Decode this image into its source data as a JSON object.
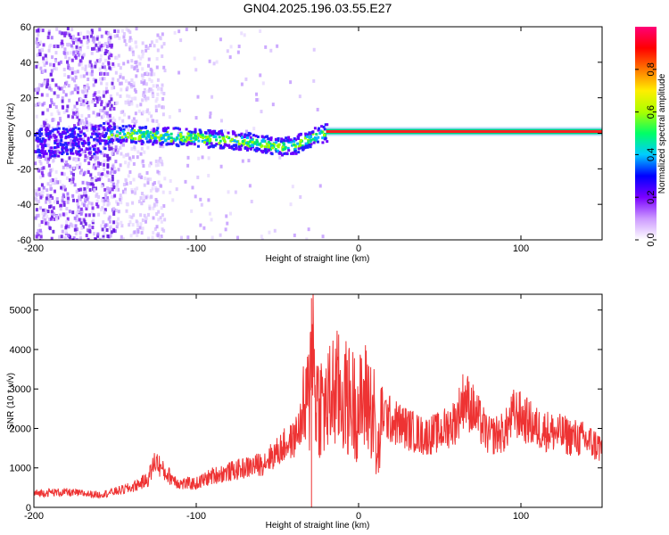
{
  "title": "GN04.2025.196.03.55.E27",
  "chart_data": [
    {
      "type": "heatmap",
      "xlabel": "Height of straight line (km)",
      "ylabel": "Frequency (Hz)",
      "xlim": [
        -200,
        150
      ],
      "ylim": [
        -60,
        60
      ],
      "xticks": [
        -200,
        -100,
        0,
        100
      ],
      "yticks": [
        -60,
        -40,
        -20,
        0,
        20,
        40,
        60
      ],
      "colorbar": {
        "label": "Normalized spectral amplitude",
        "range": [
          0,
          1
        ],
        "ticks": [
          "0.0",
          "0.2",
          "0.4",
          "0.6",
          "0.8"
        ],
        "colors": [
          "#ffffff",
          "#cc99ff",
          "#7a00ff",
          "#0000ff",
          "#00ccff",
          "#00ff66",
          "#aaff00",
          "#ffee00",
          "#ff7700",
          "#ff0000",
          "#ff0077"
        ]
      },
      "ridge": {
        "x": [
          -200,
          -180,
          -160,
          -155,
          -140,
          -120,
          -100,
          -80,
          -60,
          -50,
          -40,
          -30,
          -20,
          0,
          50,
          100,
          150
        ],
        "y": [
          -5,
          -4,
          -3,
          0,
          0,
          -1,
          -2,
          -3,
          -5,
          -7,
          -6,
          -2,
          1,
          1,
          1,
          1,
          1
        ]
      },
      "grid": false
    },
    {
      "type": "line",
      "xlabel": "Height of straight line (km)",
      "ylabel": "SNR (10 * v/v)",
      "xlim": [
        -200,
        150
      ],
      "ylim": [
        0,
        5400
      ],
      "xticks": [
        -200,
        -100,
        0,
        100
      ],
      "yticks": [
        0,
        1000,
        2000,
        3000,
        4000,
        5000
      ],
      "series": [
        {
          "color": "#ee3333",
          "x": [
            -200,
            -190,
            -180,
            -170,
            -160,
            -150,
            -140,
            -130,
            -125,
            -120,
            -110,
            -100,
            -90,
            -80,
            -70,
            -60,
            -50,
            -45,
            -40,
            -35,
            -30,
            -29,
            -27,
            -25,
            -20,
            -15,
            -10,
            -5,
            0,
            5,
            10,
            11,
            15,
            20,
            30,
            40,
            50,
            60,
            65,
            70,
            80,
            90,
            96,
            100,
            110,
            120,
            130,
            140,
            150
          ],
          "y": [
            350,
            380,
            380,
            350,
            320,
            400,
            500,
            700,
            1200,
            900,
            600,
            600,
            800,
            900,
            1000,
            1100,
            1400,
            1600,
            1700,
            2200,
            2800,
            5300,
            3000,
            2700,
            2500,
            3000,
            2800,
            2700,
            2500,
            2800,
            2300,
            1000,
            2400,
            2200,
            2000,
            1800,
            1900,
            2200,
            2800,
            2500,
            1800,
            1900,
            2400,
            2300,
            2000,
            1900,
            1800,
            1700,
            1500
          ]
        }
      ],
      "grid": false
    }
  ]
}
